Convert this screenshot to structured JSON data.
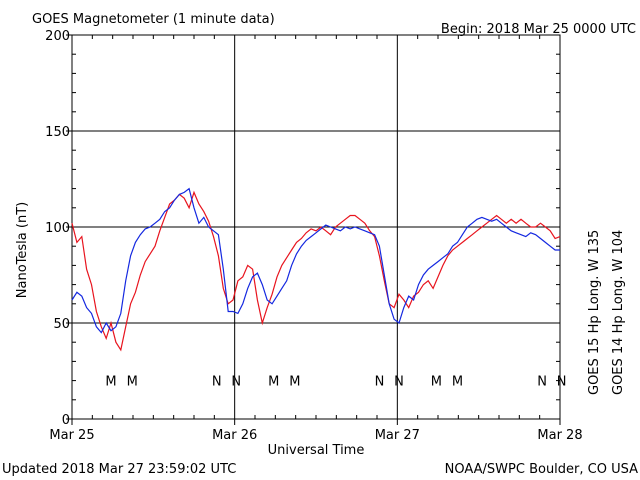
{
  "chart_data": {
    "type": "line",
    "title": "GOES Magnetometer (1 minute data)",
    "begin_label": "Begin:  2018 Mar 25 0000 UTC",
    "xlabel": "Universal Time",
    "ylabel": "NanoTesla (nT)",
    "x_ticks": [
      "Mar 25",
      "Mar 26",
      "Mar 27",
      "Mar 28"
    ],
    "xlim_days": [
      0,
      3
    ],
    "ylim": [
      0,
      200
    ],
    "y_ticks": [
      0,
      50,
      100,
      150,
      200
    ],
    "grid": true,
    "footer_left": "Updated 2018 Mar 27 23:59:02 UTC",
    "footer_right": "NOAA/SWPC Boulder, CO USA",
    "series": [
      {
        "name": "GOES 15 Hp  Long. W 135",
        "color": "#e8141e",
        "x": [
          0,
          0.03,
          0.06,
          0.09,
          0.12,
          0.15,
          0.18,
          0.21,
          0.24,
          0.27,
          0.3,
          0.33,
          0.36,
          0.39,
          0.42,
          0.45,
          0.48,
          0.51,
          0.54,
          0.57,
          0.6,
          0.63,
          0.66,
          0.69,
          0.72,
          0.75,
          0.78,
          0.81,
          0.84,
          0.87,
          0.9,
          0.93,
          0.96,
          0.99,
          1.02,
          1.05,
          1.08,
          1.11,
          1.14,
          1.17,
          1.2,
          1.23,
          1.26,
          1.29,
          1.32,
          1.35,
          1.38,
          1.41,
          1.44,
          1.47,
          1.5,
          1.53,
          1.56,
          1.59,
          1.62,
          1.65,
          1.68,
          1.71,
          1.74,
          1.77,
          1.8,
          1.83,
          1.86,
          1.89,
          1.92,
          1.95,
          1.98,
          2.01,
          2.04,
          2.07,
          2.1,
          2.13,
          2.16,
          2.19,
          2.22,
          2.25,
          2.28,
          2.31,
          2.34,
          2.37,
          2.4,
          2.43,
          2.46,
          2.49,
          2.52,
          2.55,
          2.58,
          2.61,
          2.64,
          2.67,
          2.7,
          2.73,
          2.76,
          2.79,
          2.82,
          2.85,
          2.88,
          2.91,
          2.94,
          2.97,
          3.0
        ],
        "values": [
          102,
          92,
          95,
          78,
          70,
          56,
          48,
          42,
          50,
          40,
          36,
          48,
          60,
          66,
          75,
          82,
          86,
          90,
          98,
          105,
          112,
          114,
          117,
          115,
          110,
          118,
          112,
          108,
          103,
          95,
          85,
          68,
          60,
          62,
          72,
          74,
          80,
          78,
          62,
          50,
          58,
          65,
          74,
          80,
          84,
          88,
          92,
          94,
          97,
          99,
          98,
          100,
          98,
          96,
          100,
          102,
          104,
          106,
          106,
          104,
          102,
          98,
          95,
          85,
          72,
          60,
          58,
          65,
          62,
          58,
          64,
          66,
          70,
          72,
          68,
          74,
          80,
          85,
          88,
          90,
          92,
          94,
          96,
          98,
          100,
          102,
          104,
          106,
          104,
          102,
          104,
          102,
          104,
          102,
          100,
          100,
          102,
          100,
          98,
          94,
          95
        ]
      },
      {
        "name": "GOES 14 Hp  Long. W 104",
        "color": "#1428e0",
        "x": [
          0,
          0.03,
          0.06,
          0.09,
          0.12,
          0.15,
          0.18,
          0.21,
          0.24,
          0.27,
          0.3,
          0.33,
          0.36,
          0.39,
          0.42,
          0.45,
          0.48,
          0.51,
          0.54,
          0.57,
          0.6,
          0.63,
          0.66,
          0.69,
          0.72,
          0.75,
          0.78,
          0.81,
          0.84,
          0.87,
          0.9,
          0.93,
          0.96,
          0.99,
          1.02,
          1.05,
          1.08,
          1.11,
          1.14,
          1.17,
          1.2,
          1.23,
          1.26,
          1.29,
          1.32,
          1.35,
          1.38,
          1.41,
          1.44,
          1.47,
          1.5,
          1.53,
          1.56,
          1.59,
          1.62,
          1.65,
          1.68,
          1.71,
          1.74,
          1.77,
          1.8,
          1.83,
          1.86,
          1.89,
          1.92,
          1.95,
          1.98,
          2.01,
          2.04,
          2.07,
          2.1,
          2.13,
          2.16,
          2.19,
          2.22,
          2.25,
          2.28,
          2.31,
          2.34,
          2.37,
          2.4,
          2.43,
          2.46,
          2.49,
          2.52,
          2.55,
          2.58,
          2.61,
          2.64,
          2.67,
          2.7,
          2.73,
          2.76,
          2.79,
          2.82,
          2.85,
          2.88,
          2.91,
          2.94,
          2.97,
          3.0
        ],
        "values": [
          62,
          66,
          64,
          58,
          55,
          48,
          45,
          50,
          46,
          48,
          55,
          72,
          85,
          92,
          96,
          99,
          100,
          102,
          104,
          108,
          110,
          114,
          117,
          118,
          120,
          110,
          102,
          105,
          100,
          98,
          96,
          78,
          56,
          56,
          55,
          60,
          68,
          74,
          76,
          70,
          62,
          60,
          64,
          68,
          72,
          80,
          86,
          90,
          93,
          95,
          97,
          99,
          101,
          100,
          99,
          98,
          100,
          99,
          100,
          99,
          98,
          97,
          96,
          90,
          75,
          60,
          52,
          50,
          58,
          64,
          62,
          70,
          75,
          78,
          80,
          82,
          84,
          86,
          90,
          92,
          96,
          100,
          102,
          104,
          105,
          104,
          103,
          104,
          102,
          100,
          98,
          97,
          96,
          95,
          97,
          96,
          94,
          92,
          90,
          88,
          88
        ]
      }
    ],
    "markers": [
      {
        "label": "M",
        "x": 0.24,
        "color": "#1428e0"
      },
      {
        "label": "M",
        "x": 0.37,
        "color": "#e8141e"
      },
      {
        "label": "N",
        "x": 0.89,
        "color": "#1428e0"
      },
      {
        "label": "N",
        "x": 1.01,
        "color": "#e8141e"
      },
      {
        "label": "M",
        "x": 1.24,
        "color": "#1428e0"
      },
      {
        "label": "M",
        "x": 1.37,
        "color": "#e8141e"
      },
      {
        "label": "N",
        "x": 1.89,
        "color": "#1428e0"
      },
      {
        "label": "N",
        "x": 2.01,
        "color": "#e8141e"
      },
      {
        "label": "M",
        "x": 2.24,
        "color": "#1428e0"
      },
      {
        "label": "M",
        "x": 2.37,
        "color": "#e8141e"
      },
      {
        "label": "N",
        "x": 2.89,
        "color": "#1428e0"
      },
      {
        "label": "N",
        "x": 3.01,
        "color": "#e8141e"
      }
    ],
    "marker_y": 20
  }
}
